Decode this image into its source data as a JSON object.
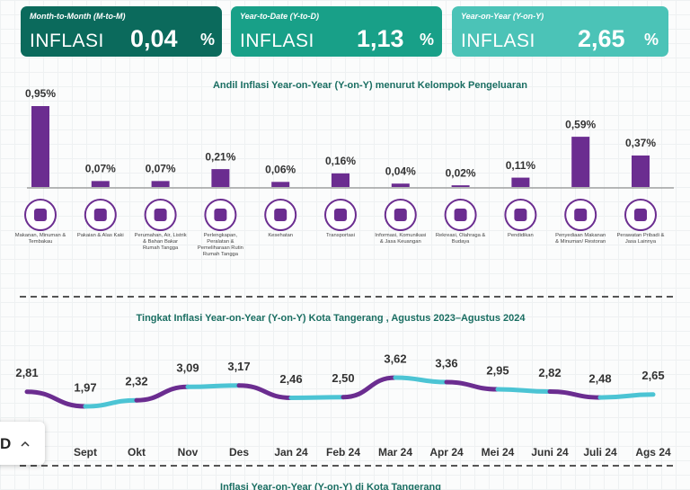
{
  "cards": [
    {
      "label": "Month-to-Month (M-to-M)",
      "title": "INFLASI",
      "value": "0,04",
      "unit": "%"
    },
    {
      "label": "Year-to-Date (Y-to-D)",
      "title": "INFLASI",
      "value": "1,13",
      "unit": "%"
    },
    {
      "label": "Year-on-Year (Y-on-Y)",
      "title": "INFLASI",
      "value": "2,65",
      "unit": "%"
    }
  ],
  "chart_data": [
    {
      "type": "bar",
      "title": "Andil Inflasi Year-on-Year (Y-on-Y) menurut Kelompok Pengeluaran",
      "categories": [
        "Makanan, Minuman & Tembakau",
        "Pakaian & Alas Kaki",
        "Perumahan, Air, Listrik & Bahan Bakar Rumah Tangga",
        "Perlengkapan, Peralatan & Pemeliharaan Rutin Rumah Tangga",
        "Kesehatan",
        "Transportasi",
        "Informasi, Komunikasi & Jasa Keuangan",
        "Rekreasi, Olahraga & Budaya",
        "Pendidikan",
        "Penyediaan Makanan & Minuman/ Restoran",
        "Perawatan Pribadi & Jasa Lainnya"
      ],
      "values": [
        0.95,
        0.07,
        0.07,
        0.21,
        0.06,
        0.16,
        0.04,
        0.02,
        0.11,
        0.59,
        0.37
      ],
      "value_labels": [
        "0,95%",
        "0,07%",
        "0,07%",
        "0,21%",
        "0,06%",
        "0,16%",
        "0,04%",
        "0,02%",
        "0,11%",
        "0,59%",
        "0,37%"
      ],
      "color": "#6b2d90"
    },
    {
      "type": "line",
      "title": "Tingkat Inflasi Year-on-Year (Y-on-Y) Kota Tangerang , Agustus 2023–Agustus 2024",
      "categories": [
        null,
        "Sept",
        "Okt",
        "Nov",
        "Des",
        "Jan 24",
        "Feb 24",
        "Mar 24",
        "Apr 24",
        "Mei 24",
        "Juni 24",
        "Juli 24",
        "Ags 24"
      ],
      "values": [
        2.81,
        1.97,
        2.32,
        3.09,
        3.17,
        2.46,
        2.5,
        3.62,
        3.36,
        2.95,
        2.82,
        2.48,
        2.65
      ],
      "value_labels": [
        "2,81",
        "1,97",
        "2,32",
        "3,09",
        "3,17",
        "2,46",
        "2,50",
        "3,62",
        "3,36",
        "2,95",
        "2,82",
        "2,48",
        "2,65"
      ],
      "colors": [
        "#6b2d90",
        "#4cc4d4"
      ]
    }
  ],
  "footer_title": "Inflasi Year-on-Year (Y-on-Y) di Kota Tangerang",
  "popup": "D"
}
